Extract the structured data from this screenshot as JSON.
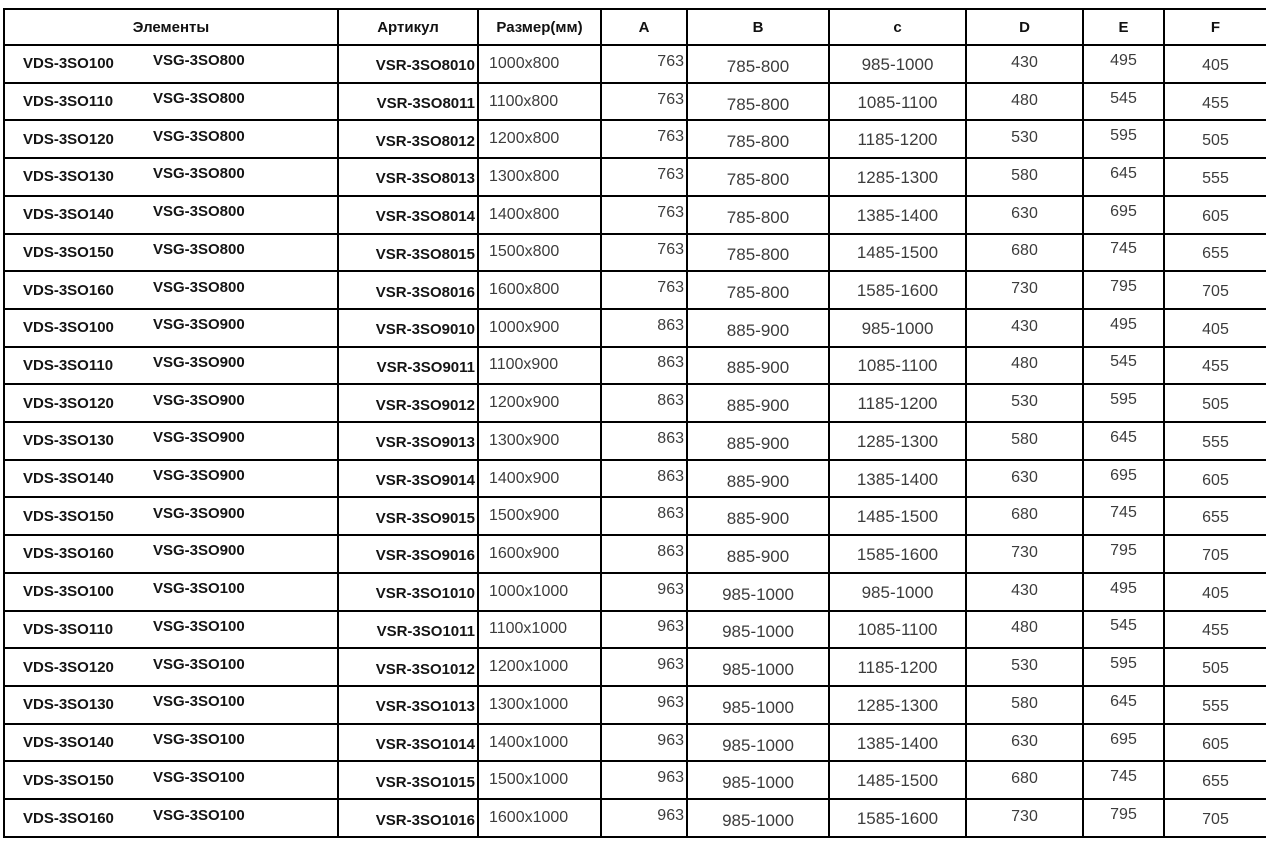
{
  "colors": {
    "background": "#ffffff",
    "border": "#000000",
    "text_bold": "#141414",
    "text_regular": "#3c3c3c"
  },
  "columns": [
    "Элементы",
    "Артикул",
    "Размер(мм)",
    "A",
    "B",
    "c",
    "D",
    "E",
    "F"
  ],
  "rows": [
    {
      "vds": "VDS-3SO100",
      "vsg": "VSG-3SO800",
      "articul": "VSR-3SO8010",
      "size": "1000x800",
      "a": "763",
      "b": "785-800",
      "c": "985-1000",
      "d": "430",
      "e": "495",
      "f": "405"
    },
    {
      "vds": "VDS-3SO110",
      "vsg": "VSG-3SO800",
      "articul": "VSR-3SO8011",
      "size": "1100x800",
      "a": "763",
      "b": "785-800",
      "c": "1085-1100",
      "d": "480",
      "e": "545",
      "f": "455"
    },
    {
      "vds": "VDS-3SO120",
      "vsg": "VSG-3SO800",
      "articul": "VSR-3SO8012",
      "size": "1200x800",
      "a": "763",
      "b": "785-800",
      "c": "1185-1200",
      "d": "530",
      "e": "595",
      "f": "505"
    },
    {
      "vds": "VDS-3SO130",
      "vsg": "VSG-3SO800",
      "articul": "VSR-3SO8013",
      "size": "1300x800",
      "a": "763",
      "b": "785-800",
      "c": "1285-1300",
      "d": "580",
      "e": "645",
      "f": "555"
    },
    {
      "vds": "VDS-3SO140",
      "vsg": "VSG-3SO800",
      "articul": "VSR-3SO8014",
      "size": "1400x800",
      "a": "763",
      "b": "785-800",
      "c": "1385-1400",
      "d": "630",
      "e": "695",
      "f": "605"
    },
    {
      "vds": "VDS-3SO150",
      "vsg": "VSG-3SO800",
      "articul": "VSR-3SO8015",
      "size": "1500x800",
      "a": "763",
      "b": "785-800",
      "c": "1485-1500",
      "d": "680",
      "e": "745",
      "f": "655"
    },
    {
      "vds": "VDS-3SO160",
      "vsg": "VSG-3SO800",
      "articul": "VSR-3SO8016",
      "size": "1600x800",
      "a": "763",
      "b": "785-800",
      "c": "1585-1600",
      "d": "730",
      "e": "795",
      "f": "705"
    },
    {
      "vds": "VDS-3SO100",
      "vsg": "VSG-3SO900",
      "articul": "VSR-3SO9010",
      "size": "1000x900",
      "a": "863",
      "b": "885-900",
      "c": "985-1000",
      "d": "430",
      "e": "495",
      "f": "405"
    },
    {
      "vds": "VDS-3SO110",
      "vsg": "VSG-3SO900",
      "articul": "VSR-3SO9011",
      "size": "1100x900",
      "a": "863",
      "b": "885-900",
      "c": "1085-1100",
      "d": "480",
      "e": "545",
      "f": "455"
    },
    {
      "vds": "VDS-3SO120",
      "vsg": "VSG-3SO900",
      "articul": "VSR-3SO9012",
      "size": "1200x900",
      "a": "863",
      "b": "885-900",
      "c": "1185-1200",
      "d": "530",
      "e": "595",
      "f": "505"
    },
    {
      "vds": "VDS-3SO130",
      "vsg": "VSG-3SO900",
      "articul": "VSR-3SO9013",
      "size": "1300x900",
      "a": "863",
      "b": "885-900",
      "c": "1285-1300",
      "d": "580",
      "e": "645",
      "f": "555"
    },
    {
      "vds": "VDS-3SO140",
      "vsg": "VSG-3SO900",
      "articul": "VSR-3SO9014",
      "size": "1400x900",
      "a": "863",
      "b": "885-900",
      "c": "1385-1400",
      "d": "630",
      "e": "695",
      "f": "605"
    },
    {
      "vds": "VDS-3SO150",
      "vsg": "VSG-3SO900",
      "articul": "VSR-3SO9015",
      "size": "1500x900",
      "a": "863",
      "b": "885-900",
      "c": "1485-1500",
      "d": "680",
      "e": "745",
      "f": "655"
    },
    {
      "vds": "VDS-3SO160",
      "vsg": "VSG-3SO900",
      "articul": "VSR-3SO9016",
      "size": "1600x900",
      "a": "863",
      "b": "885-900",
      "c": "1585-1600",
      "d": "730",
      "e": "795",
      "f": "705"
    },
    {
      "vds": "VDS-3SO100",
      "vsg": "VSG-3SO100",
      "articul": "VSR-3SO1010",
      "size": "1000x1000",
      "a": "963",
      "b": "985-1000",
      "c": "985-1000",
      "d": "430",
      "e": "495",
      "f": "405"
    },
    {
      "vds": "VDS-3SO110",
      "vsg": "VSG-3SO100",
      "articul": "VSR-3SO1011",
      "size": "1100x1000",
      "a": "963",
      "b": "985-1000",
      "c": "1085-1100",
      "d": "480",
      "e": "545",
      "f": "455"
    },
    {
      "vds": "VDS-3SO120",
      "vsg": "VSG-3SO100",
      "articul": "VSR-3SO1012",
      "size": "1200x1000",
      "a": "963",
      "b": "985-1000",
      "c": "1185-1200",
      "d": "530",
      "e": "595",
      "f": "505"
    },
    {
      "vds": "VDS-3SO130",
      "vsg": "VSG-3SO100",
      "articul": "VSR-3SO1013",
      "size": "1300x1000",
      "a": "963",
      "b": "985-1000",
      "c": "1285-1300",
      "d": "580",
      "e": "645",
      "f": "555"
    },
    {
      "vds": "VDS-3SO140",
      "vsg": "VSG-3SO100",
      "articul": "VSR-3SO1014",
      "size": "1400x1000",
      "a": "963",
      "b": "985-1000",
      "c": "1385-1400",
      "d": "630",
      "e": "695",
      "f": "605"
    },
    {
      "vds": "VDS-3SO150",
      "vsg": "VSG-3SO100",
      "articul": "VSR-3SO1015",
      "size": "1500x1000",
      "a": "963",
      "b": "985-1000",
      "c": "1485-1500",
      "d": "680",
      "e": "745",
      "f": "655"
    },
    {
      "vds": "VDS-3SO160",
      "vsg": "VSG-3SO100",
      "articul": "VSR-3SO1016",
      "size": "1600x1000",
      "a": "963",
      "b": "985-1000",
      "c": "1585-1600",
      "d": "730",
      "e": "795",
      "f": "705"
    }
  ]
}
